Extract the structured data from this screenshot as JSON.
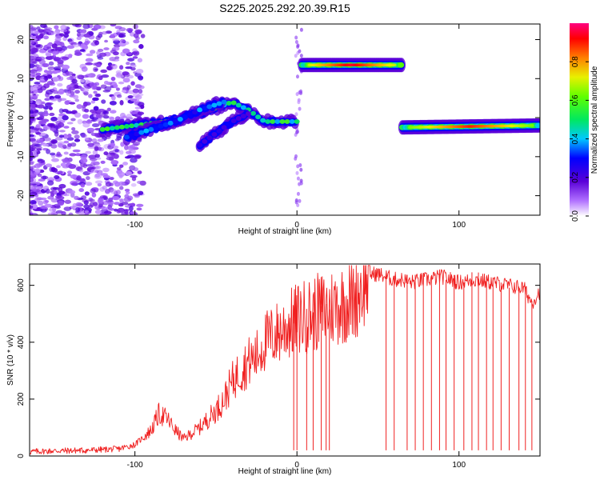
{
  "title": "S225.2025.292.20.39.R15",
  "colors": {
    "snr_line": "#f02020",
    "axis": "#000000",
    "background": "#ffffff"
  },
  "chart_data": [
    {
      "type": "heatmap",
      "name": "spectrogram",
      "xlabel": "Height of straight line (km)",
      "ylabel": "Frequency (Hz)",
      "xlim": [
        -165,
        150
      ],
      "ylim": [
        -25,
        24
      ],
      "xticks": [
        -100,
        0,
        100
      ],
      "yticks": [
        -20,
        -10,
        0,
        10,
        20
      ],
      "grid": false,
      "colorbar": {
        "label": "Normalized spectral amplitude",
        "range": [
          0,
          1
        ],
        "ticks": [
          "0.0",
          "0.2",
          "0.4",
          "0.6",
          "0.8"
        ]
      },
      "features": [
        {
          "name": "rising-track-main",
          "x": [
            -120,
            -100,
            -80,
            -60,
            -40,
            -30,
            -20,
            -10,
            0
          ],
          "y": [
            -3,
            -2,
            -1,
            1,
            4,
            2,
            -1,
            -1,
            -1
          ],
          "amplitude": 0.6
        },
        {
          "name": "rising-track-branch",
          "x": [
            -105,
            -90,
            -75,
            -60,
            -45
          ],
          "y": [
            -5,
            -3,
            -1,
            2,
            4
          ],
          "amplitude": 0.4
        },
        {
          "name": "rising-track-lower",
          "x": [
            -60,
            -50,
            -40,
            -30
          ],
          "y": [
            -7,
            -4,
            -1,
            1
          ],
          "amplitude": 0.3
        },
        {
          "name": "upper-band",
          "x": [
            3,
            65
          ],
          "y": [
            13.5,
            13.5
          ],
          "amplitude": 0.95
        },
        {
          "name": "lower-band",
          "x": [
            65,
            150
          ],
          "y": [
            -2.5,
            -2
          ],
          "amplitude": 0.9
        }
      ]
    },
    {
      "type": "line",
      "name": "snr",
      "xlabel": "Height of straight line (km)",
      "ylabel": "SNR (10 * v/v)",
      "xlim": [
        -165,
        150
      ],
      "ylim": [
        0,
        675
      ],
      "xticks": [
        -100,
        0,
        100
      ],
      "yticks": [
        0,
        200,
        400,
        600
      ],
      "grid": false,
      "series": [
        {
          "name": "SNR",
          "x": [
            -165,
            -150,
            -130,
            -110,
            -100,
            -90,
            -85,
            -80,
            -75,
            -70,
            -60,
            -50,
            -45,
            -40,
            -35,
            -30,
            -25,
            -20,
            -15,
            -10,
            -5,
            0,
            5,
            10,
            15,
            20,
            25,
            30,
            35,
            40,
            45,
            50,
            55,
            60,
            65,
            70,
            80,
            90,
            100,
            110,
            120,
            130,
            140,
            145,
            150
          ],
          "values": [
            15,
            18,
            20,
            25,
            40,
            90,
            150,
            130,
            90,
            60,
            100,
            160,
            200,
            260,
            300,
            330,
            350,
            400,
            420,
            440,
            460,
            480,
            490,
            500,
            510,
            520,
            530,
            540,
            550,
            600,
            640,
            640,
            630,
            620,
            620,
            610,
            620,
            630,
            610,
            620,
            610,
            600,
            590,
            540,
            580
          ]
        }
      ],
      "dropouts": [
        -2,
        0,
        6,
        10,
        15,
        18,
        20,
        55,
        60,
        68,
        73,
        78,
        83,
        88,
        92,
        97,
        103,
        108,
        112,
        117,
        121,
        126,
        131,
        137,
        141,
        145
      ]
    }
  ]
}
